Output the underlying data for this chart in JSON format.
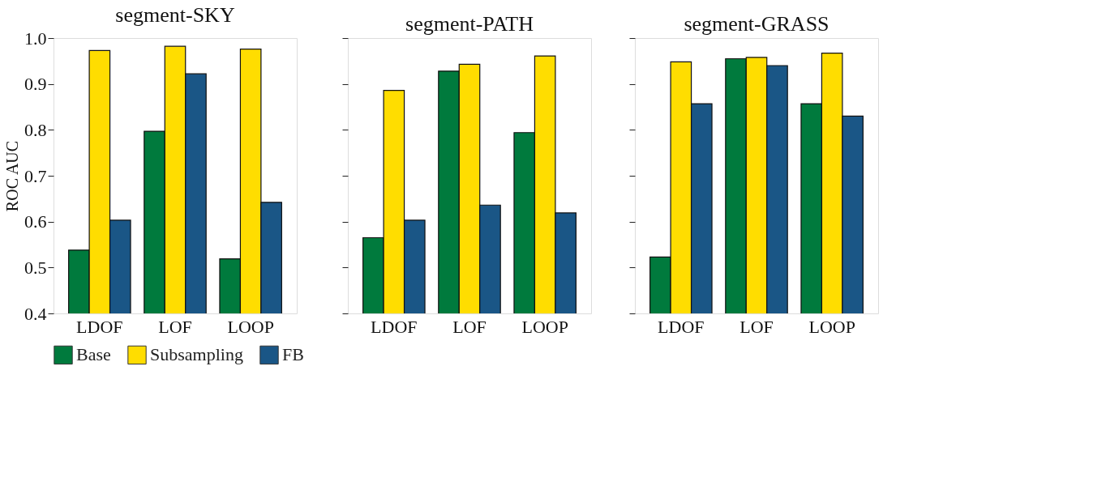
{
  "chart_data": [
    {
      "type": "bar",
      "title": "segment-SKY",
      "ylabel": "ROC AUC",
      "categories": [
        "LDOF",
        "LOF",
        "LOOP"
      ],
      "ylim": [
        0.4,
        1.0
      ],
      "yticks": [
        0.4,
        0.5,
        0.6,
        0.7,
        0.8,
        0.9,
        {
          "value": 1.0,
          "label": "1.0"
        }
      ],
      "legend": "bottom",
      "series": [
        {
          "name": "Base",
          "color": "#007a3d",
          "values": [
            0.538,
            0.797,
            0.519
          ]
        },
        {
          "name": "Subsampling",
          "color": "#ffdd00",
          "values": [
            0.973,
            0.982,
            0.976
          ]
        },
        {
          "name": "FB",
          "color": "#1a5686",
          "values": [
            0.603,
            0.922,
            0.642
          ]
        }
      ]
    },
    {
      "type": "bar",
      "title": "segment-PATH",
      "categories": [
        "LDOF",
        "LOF",
        "LOOP"
      ],
      "ylim": [
        0.4,
        1.0
      ],
      "yticks": [
        0.4,
        0.5,
        0.6,
        0.7,
        0.8,
        0.9,
        1.0
      ],
      "tick_labels": "x",
      "series": [
        {
          "color": "#007a3d",
          "values": [
            0.565,
            0.928,
            0.794
          ]
        },
        {
          "color": "#ffdd00",
          "values": [
            0.886,
            0.943,
            0.961
          ]
        },
        {
          "color": "#1a5686",
          "values": [
            0.603,
            0.636,
            0.619
          ]
        }
      ]
    },
    {
      "type": "bar",
      "title": "segment-GRASS",
      "categories": [
        "LDOF",
        "LOF",
        "LOOP"
      ],
      "ylim": [
        0.4,
        1.0
      ],
      "yticks": [
        0.4,
        0.5,
        0.6,
        0.7,
        0.8,
        0.9,
        1.0
      ],
      "tick_labels": "x",
      "series": [
        {
          "color": "#007a3d",
          "values": [
            0.523,
            0.955,
            0.857
          ]
        },
        {
          "color": "#ffdd00",
          "values": [
            0.948,
            0.958,
            0.967
          ]
        },
        {
          "color": "#1a5686",
          "values": [
            0.857,
            0.94,
            0.83
          ]
        }
      ]
    }
  ]
}
